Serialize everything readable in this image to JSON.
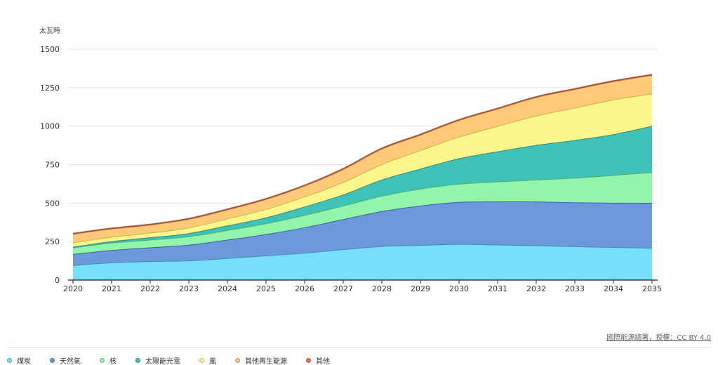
{
  "unit_label": "太瓦時",
  "source": "國際能源總署，授權：CC BY 4.0",
  "chart_data": {
    "type": "area",
    "stacked": true,
    "x": [
      2020,
      2021,
      2022,
      2023,
      2024,
      2025,
      2026,
      2027,
      2028,
      2029,
      2030,
      2031,
      2032,
      2033,
      2034,
      2035
    ],
    "y_ticks": [
      0,
      250,
      500,
      750,
      1000,
      1250,
      1500
    ],
    "ylim": [
      0,
      1500
    ],
    "grid": true,
    "legend_position": "bottom-left",
    "series": [
      {
        "name": "煤炭",
        "color": "#76dff9",
        "line_color": "#3a8fb5",
        "values": [
          95,
          112,
          120,
          125,
          140,
          158,
          175,
          198,
          218,
          225,
          232,
          228,
          223,
          217,
          212,
          207
        ]
      },
      {
        "name": "天然氣",
        "color": "#6d98db",
        "line_color": "#3d5fa6",
        "values": [
          72,
          80,
          90,
          102,
          120,
          138,
          165,
          195,
          227,
          256,
          273,
          280,
          285,
          285,
          288,
          292
        ]
      },
      {
        "name": "核",
        "color": "#92f5ab",
        "line_color": "#4fae6e",
        "values": [
          42,
          48,
          50,
          55,
          62,
          70,
          80,
          88,
          100,
          110,
          118,
          130,
          142,
          160,
          180,
          200
        ]
      },
      {
        "name": "太陽能光電",
        "color": "#3fc2b8",
        "line_color": "#2a8a83",
        "values": [
          5,
          10,
          15,
          20,
          30,
          38,
          55,
          72,
          105,
          130,
          165,
          195,
          225,
          245,
          265,
          300
        ]
      },
      {
        "name": "風",
        "color": "#fbf78c",
        "line_color": "#c2b93f",
        "values": [
          28,
          28,
          30,
          37,
          45,
          55,
          65,
          80,
          100,
          120,
          140,
          165,
          190,
          210,
          225,
          210
        ]
      },
      {
        "name": "其他再生能源",
        "color": "#ffc97a",
        "line_color": "#d18d3a",
        "values": [
          55,
          53,
          52,
          55,
          58,
          64,
          70,
          85,
          100,
          100,
          108,
          112,
          120,
          120,
          118,
          120
        ]
      },
      {
        "name": "其他",
        "color": "#f06e4e",
        "line_color": "#a8563b",
        "values": [
          5,
          5,
          5,
          5,
          5,
          5,
          5,
          5,
          5,
          5,
          5,
          5,
          5,
          5,
          5,
          5
        ]
      }
    ]
  }
}
